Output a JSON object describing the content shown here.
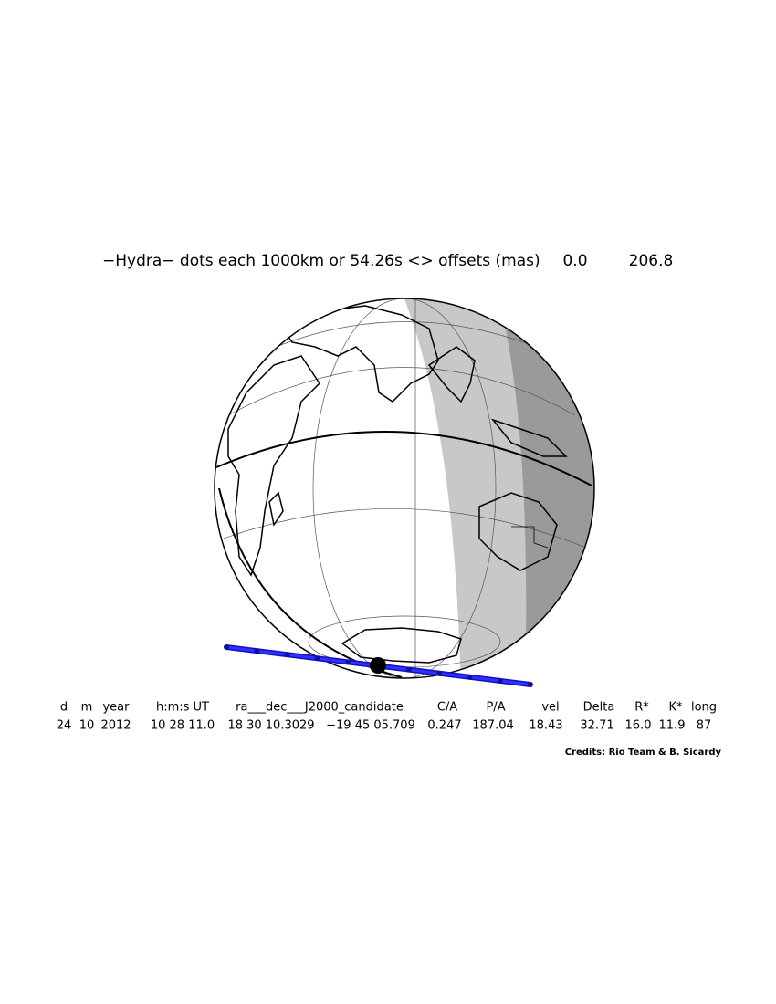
{
  "title": {
    "text": "−Hydra−  dots each 1000km or 54.26s <> offsets (mas)",
    "offsets": [
      "0.0",
      "206.8"
    ]
  },
  "table": {
    "headers": [
      "d",
      "m",
      "year",
      "h:m:s UT",
      "ra___dec___J2000_candidate",
      "C/A",
      "P/A",
      "vel",
      "Delta",
      "R*",
      "K*",
      "long"
    ],
    "values": [
      "24",
      "10",
      "2012",
      "10 28 11.0",
      "18 30 10.3029",
      "−19 45 05.709",
      "0.247",
      "187.04",
      "18.43",
      "32.71",
      "16.0",
      "11.9",
      "87"
    ]
  },
  "credits": "Credits: Rio Team & B. Sicardy"
}
